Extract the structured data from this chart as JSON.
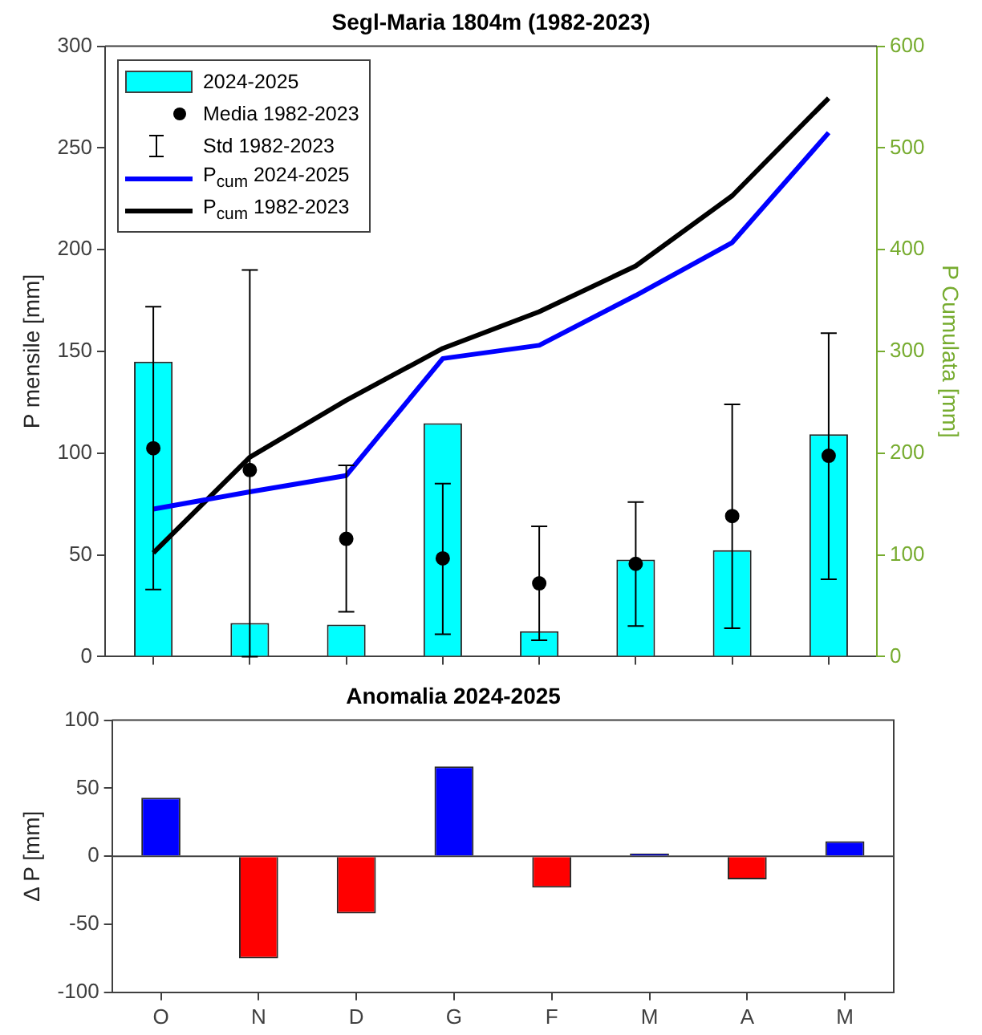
{
  "chart_data": [
    {
      "type": "bar",
      "title": "Segl-Maria 1804m (1982-2023)",
      "ylabel": "P mensile [mm]",
      "y2label": "P Cumulata [mm]",
      "categories": [
        null,
        null,
        null,
        null,
        null,
        null,
        null,
        null
      ],
      "series": [
        {
          "name": "2024-2025",
          "type": "bar",
          "color": "#00ffff",
          "values": [
            145,
            16.5,
            15.7,
            114.7,
            12.5,
            47.7,
            52.3,
            109.3
          ]
        },
        {
          "name": "Media 1982-2023",
          "type": "scatter",
          "marker": "circle",
          "color": "#000000",
          "values": [
            102.4,
            91.7,
            57.9,
            48.3,
            36,
            45.6,
            69.1,
            98.7
          ],
          "errors": [
            [
              33,
              172
            ],
            [
              0,
              190
            ],
            [
              22,
              94
            ],
            [
              11,
              85
            ],
            [
              8,
              64
            ],
            [
              15,
              76
            ],
            [
              14,
              124
            ],
            [
              38,
              159
            ]
          ]
        },
        {
          "name": "P$_{cum}$ 2024-2025",
          "type": "line",
          "axis": "y2",
          "color": "#0000ff",
          "values": [
            145,
            162,
            178,
            293,
            306,
            355,
            407,
            515
          ]
        },
        {
          "name": "P$_{cum}$ 1982-2023",
          "type": "line",
          "axis": "y2",
          "color": "#000000",
          "values": [
            102,
            196,
            252,
            303,
            339,
            384,
            453,
            549
          ]
        }
      ],
      "ylim": [
        0,
        300
      ],
      "yticks": [
        0,
        50,
        100,
        150,
        200,
        250,
        300
      ],
      "y2lim": [
        0,
        600
      ],
      "y2ticks": [
        0,
        100,
        200,
        300,
        400,
        500,
        600
      ],
      "annotations": [
        "Std 1982-2023"
      ],
      "tick_labels": "y",
      "legend": "top left",
      "grid": false
    },
    {
      "type": "bar",
      "title": "Anomalia 2024-2025",
      "ylabel": "Δ P [mm]",
      "categories": [
        "O",
        "N",
        "D",
        "G",
        "F",
        "M",
        "A",
        "M"
      ],
      "values": [
        43,
        -75,
        -42,
        66,
        -23,
        2,
        -17,
        11
      ],
      "colors": [
        "#0000ff",
        "#ff0000",
        "#ff0000",
        "#0000ff",
        "#ff0000",
        "#0000ff",
        "#ff0000",
        "#0000ff"
      ],
      "ylim": [
        -100,
        100
      ],
      "yticks": [
        -100,
        -50,
        0,
        50,
        100
      ],
      "ref_lines": [
        {
          "axis": "y",
          "value": 0,
          "color": "#404040"
        }
      ],
      "legend": false,
      "grid": false
    }
  ]
}
